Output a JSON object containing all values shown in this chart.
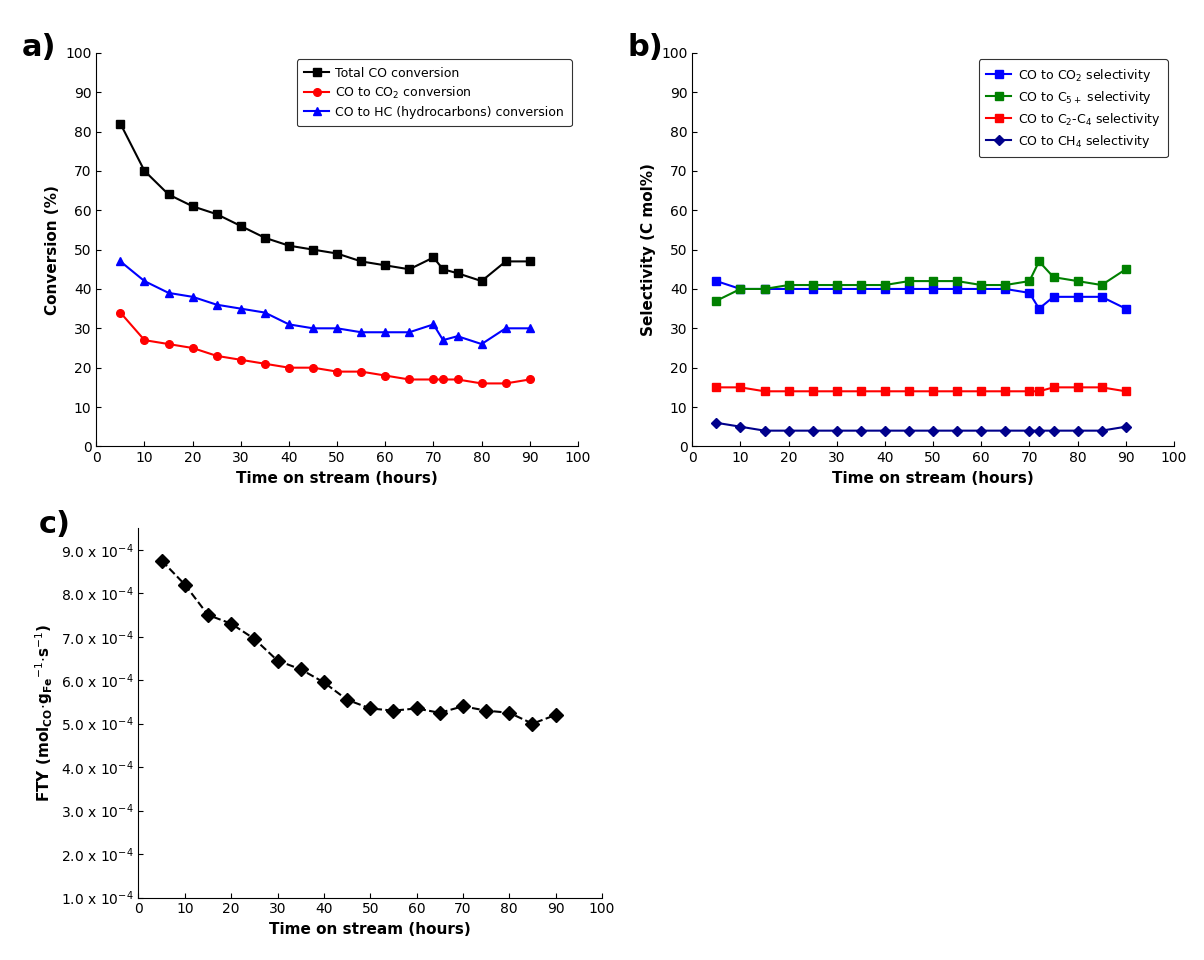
{
  "panel_a": {
    "time": [
      5,
      10,
      15,
      20,
      25,
      30,
      35,
      40,
      45,
      50,
      55,
      60,
      65,
      70,
      72,
      75,
      80,
      85,
      90
    ],
    "total_co": [
      82,
      70,
      64,
      61,
      59,
      56,
      53,
      51,
      50,
      49,
      47,
      46,
      45,
      48,
      45,
      44,
      42,
      47,
      47
    ],
    "co_to_co2": [
      34,
      27,
      26,
      25,
      23,
      22,
      21,
      20,
      20,
      19,
      19,
      18,
      17,
      17,
      17,
      17,
      16,
      16,
      17
    ],
    "co_to_hc": [
      47,
      42,
      39,
      38,
      36,
      35,
      34,
      31,
      30,
      30,
      29,
      29,
      29,
      31,
      27,
      28,
      26,
      30,
      30
    ],
    "xlabel": "Time on stream (hours)",
    "ylabel": "Conversion (%)",
    "ylim": [
      0,
      100
    ],
    "yticks": [
      0,
      10,
      20,
      30,
      40,
      50,
      60,
      70,
      80,
      90,
      100
    ],
    "xlim": [
      0,
      100
    ],
    "xticks": [
      0,
      10,
      20,
      30,
      40,
      50,
      60,
      70,
      80,
      90,
      100
    ],
    "colors": [
      "#000000",
      "#ff0000",
      "#0000ff"
    ],
    "markers": [
      "s",
      "o",
      "^"
    ]
  },
  "panel_b": {
    "time": [
      5,
      10,
      15,
      20,
      25,
      30,
      35,
      40,
      45,
      50,
      55,
      60,
      65,
      70,
      72,
      75,
      80,
      85,
      90
    ],
    "co2_sel": [
      42,
      40,
      40,
      40,
      40,
      40,
      40,
      40,
      40,
      40,
      40,
      40,
      40,
      39,
      35,
      38,
      38,
      38,
      35
    ],
    "c5p_sel": [
      37,
      40,
      40,
      41,
      41,
      41,
      41,
      41,
      42,
      42,
      42,
      41,
      41,
      42,
      47,
      43,
      42,
      41,
      45
    ],
    "c2c4_sel": [
      15,
      15,
      14,
      14,
      14,
      14,
      14,
      14,
      14,
      14,
      14,
      14,
      14,
      14,
      14,
      15,
      15,
      15,
      14
    ],
    "ch4_sel": [
      6,
      5,
      4,
      4,
      4,
      4,
      4,
      4,
      4,
      4,
      4,
      4,
      4,
      4,
      4,
      4,
      4,
      4,
      5
    ],
    "xlabel": "Time on stream (hours)",
    "ylabel": "Selectivity (C mol%)",
    "ylim": [
      0,
      100
    ],
    "yticks": [
      0,
      10,
      20,
      30,
      40,
      50,
      60,
      70,
      80,
      90,
      100
    ],
    "xlim": [
      0,
      100
    ],
    "xticks": [
      0,
      10,
      20,
      30,
      40,
      50,
      60,
      70,
      80,
      90,
      100
    ],
    "colors": [
      "#0000ff",
      "#008000",
      "#ff0000",
      "#00008b"
    ],
    "markers": [
      "s",
      "s",
      "s",
      "D"
    ]
  },
  "panel_c": {
    "time": [
      5,
      10,
      15,
      20,
      25,
      30,
      35,
      40,
      45,
      50,
      55,
      60,
      65,
      70,
      75,
      80,
      85,
      90
    ],
    "fty": [
      0.000875,
      0.00082,
      0.00075,
      0.00073,
      0.000695,
      0.000645,
      0.000625,
      0.000595,
      0.000555,
      0.000535,
      0.00053,
      0.000535,
      0.000525,
      0.00054,
      0.00053,
      0.000525,
      0.0005,
      0.00052
    ],
    "xlabel": "Time on stream (hours)",
    "ylim_low": 0.0001,
    "ylim_high": 0.00095,
    "ytick_vals": [
      0.0001,
      0.0002,
      0.0003,
      0.0004,
      0.0005,
      0.0006,
      0.0007,
      0.0008,
      0.0009
    ],
    "xlim": [
      0,
      100
    ],
    "xticks": [
      0,
      10,
      20,
      30,
      40,
      50,
      60,
      70,
      80,
      90,
      100
    ],
    "color": "#000000",
    "marker": "D"
  },
  "bg_color": "#ffffff"
}
